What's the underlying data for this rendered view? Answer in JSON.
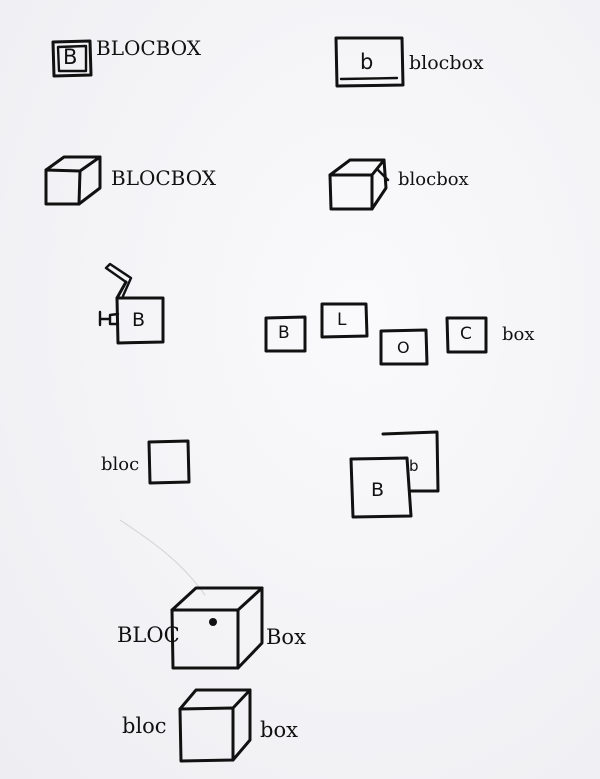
{
  "sketches": {
    "logo1": {
      "letter": "B",
      "word": "BLOCBOX"
    },
    "logo2": {
      "letter": "b",
      "word": "blocbox"
    },
    "logo3": {
      "word": "BLOCBOX"
    },
    "logo4": {
      "word": "blocbox"
    },
    "logo5": {
      "letter": "B"
    },
    "logo6": {
      "letters": [
        "B",
        "L",
        "O",
        "C"
      ],
      "word": "box"
    },
    "logo7": {
      "word": "bloc"
    },
    "logo8": {
      "front_letter": "B",
      "back_letter": "b"
    },
    "logo9": {
      "left": "BLOC",
      "right": "Box"
    },
    "logo10": {
      "left": "bloc",
      "right": "box"
    }
  }
}
